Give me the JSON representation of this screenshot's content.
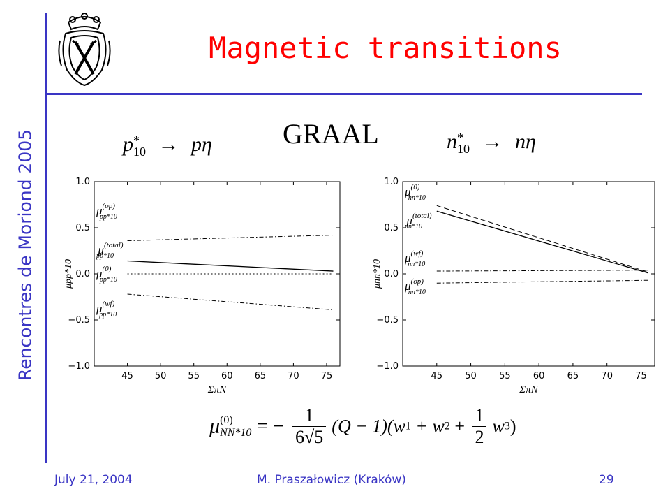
{
  "slide": {
    "title": "Magnetic transitions",
    "side_title": "Rencontres de Moriond 2005",
    "center_label": "GRAAL",
    "left_process": {
      "lhs": "p",
      "sup": "*",
      "sub": "10",
      "arrow": "→",
      "rhs": "pη"
    },
    "right_process": {
      "lhs": "n",
      "sup": "*",
      "sub": "10",
      "arrow": "→",
      "rhs": "nη"
    },
    "formula": {
      "mu": "μ",
      "mu_sup": "(0)",
      "mu_sub": "NN*10",
      "eq": "= −",
      "num1": "1",
      "den1": "6√5",
      "mid": "(Q − 1)(w",
      "s1": "1",
      "plus1": " + w",
      "s2": "2",
      "plus2": " + ",
      "num2": "1",
      "den2": "2",
      "w3": "w",
      "s3": "3",
      "close": ")"
    },
    "footer": {
      "date": "July 21, 2004",
      "author": "M. Praszałowicz (Kraków)",
      "page": "29"
    },
    "colors": {
      "accent": "#3a35c4",
      "title": "#ff0000"
    },
    "logo_icon": "coat-of-arms-icon"
  },
  "chart_data": [
    {
      "type": "line",
      "xlabel": "ΣπN",
      "ylabel": "μpp*10",
      "xlim": [
        40,
        77
      ],
      "ylim": [
        -1.0,
        1.0
      ],
      "xticks": [
        45,
        50,
        55,
        60,
        65,
        70,
        75
      ],
      "yticks": [
        -1.0,
        -0.5,
        0.0,
        0.5,
        1.0
      ],
      "xtick_labels": [
        "45",
        "50",
        "55",
        "60",
        "65",
        "70",
        "75"
      ],
      "ytick_labels": [
        "−1.0",
        "−0.5",
        "0.0",
        "0.5",
        "1.0"
      ],
      "series": [
        {
          "name": "μpp*10(op)",
          "style": "dashdot",
          "x": [
            45,
            76
          ],
          "y": [
            0.36,
            0.42
          ]
        },
        {
          "name": "μpp*10(total)",
          "style": "solid",
          "x": [
            45,
            76
          ],
          "y": [
            0.14,
            0.03
          ]
        },
        {
          "name": "μpp*10(0)",
          "style": "dotted",
          "x": [
            45,
            76
          ],
          "y": [
            0.0,
            0.0
          ]
        },
        {
          "name": "μpp*10(wf)",
          "style": "dashdot",
          "x": [
            45,
            76
          ],
          "y": [
            -0.22,
            -0.39
          ]
        }
      ]
    },
    {
      "type": "line",
      "xlabel": "ΣπN",
      "ylabel": "μnn*10",
      "xlim": [
        40,
        77
      ],
      "ylim": [
        -1.0,
        1.0
      ],
      "xticks": [
        45,
        50,
        55,
        60,
        65,
        70,
        75
      ],
      "yticks": [
        -1.0,
        -0.5,
        0.0,
        0.5,
        1.0
      ],
      "xtick_labels": [
        "45",
        "50",
        "55",
        "60",
        "65",
        "70",
        "75"
      ],
      "ytick_labels": [
        "−1.0",
        "−0.5",
        "0.0",
        "0.5",
        "1.0"
      ],
      "series": [
        {
          "name": "μnn*10(0)",
          "style": "dashed",
          "x": [
            45,
            76
          ],
          "y": [
            0.74,
            0.02
          ]
        },
        {
          "name": "μnn*10(total)",
          "style": "solid",
          "x": [
            45,
            76
          ],
          "y": [
            0.68,
            0.01
          ]
        },
        {
          "name": "μnn*10(wf)",
          "style": "dashdot",
          "x": [
            45,
            76
          ],
          "y": [
            0.03,
            0.04
          ]
        },
        {
          "name": "μnn*10(op)",
          "style": "dashdot",
          "x": [
            45,
            76
          ],
          "y": [
            -0.1,
            -0.07
          ]
        }
      ]
    }
  ]
}
